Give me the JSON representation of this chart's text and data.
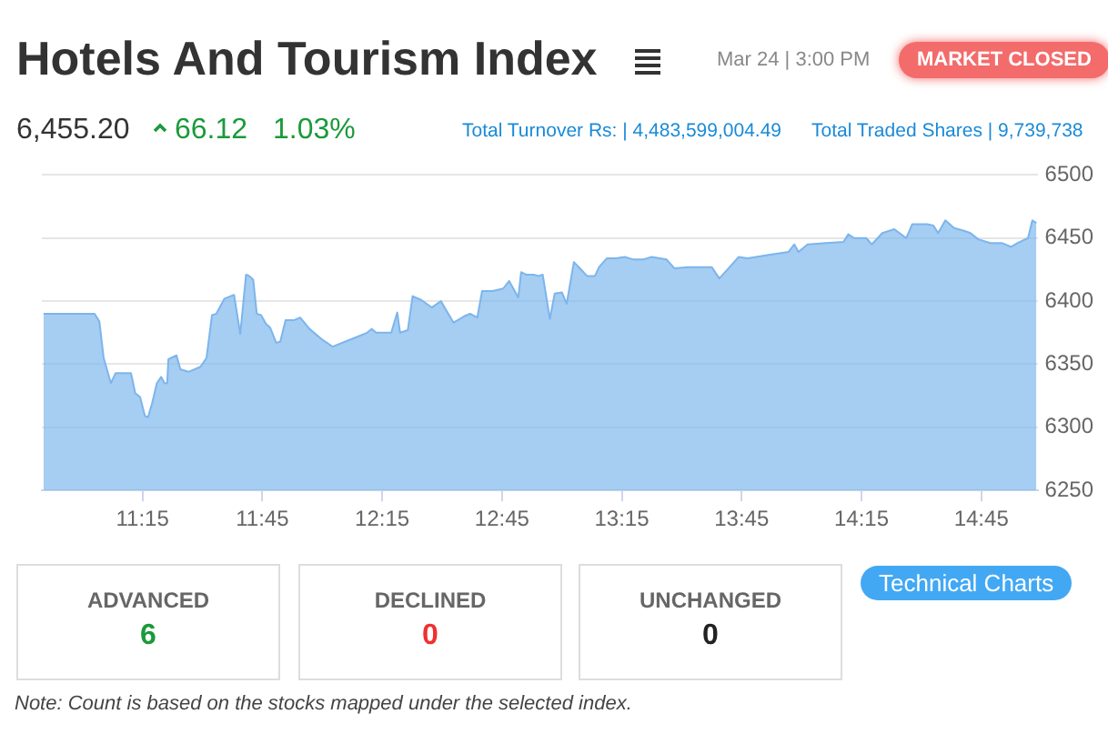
{
  "chart_data": {
    "type": "area",
    "title": "Hotels And Tourism Index",
    "color": "#7cb5ec",
    "x": [
      10.837,
      11.05,
      11.07,
      11.088,
      11.118,
      11.138,
      11.202,
      11.22,
      11.24,
      11.26,
      11.273,
      11.29,
      11.31,
      11.328,
      11.342,
      11.353,
      11.358,
      11.392,
      11.408,
      11.442,
      11.492,
      11.517,
      11.54,
      11.558,
      11.592,
      11.618,
      11.632,
      11.658,
      11.682,
      11.695,
      11.712,
      11.727,
      11.745,
      11.765,
      11.783,
      11.808,
      11.825,
      11.847,
      11.883,
      11.908,
      11.947,
      11.997,
      12.043,
      12.123,
      12.187,
      12.207,
      12.225,
      12.288,
      12.313,
      12.325,
      12.357,
      12.377,
      12.413,
      12.457,
      12.495,
      12.548,
      12.592,
      12.617,
      12.647,
      12.667,
      12.71,
      12.755,
      12.78,
      12.818,
      12.83,
      12.85,
      12.882,
      12.902,
      12.92,
      12.95,
      12.97,
      13.0,
      13.02,
      13.05,
      13.075,
      13.105,
      13.138,
      13.155,
      13.188,
      13.225,
      13.262,
      13.3,
      13.337,
      13.375,
      13.437,
      13.47,
      13.525,
      13.625,
      13.657,
      13.7,
      13.737,
      13.775,
      13.875,
      13.945,
      13.97,
      13.987,
      14.025,
      14.1,
      14.175,
      14.195,
      14.22,
      14.27,
      14.293,
      14.337,
      14.387,
      14.437,
      14.462,
      14.525,
      14.55,
      14.57,
      14.6,
      14.637,
      14.675,
      14.705,
      14.738,
      14.788,
      14.838,
      14.875,
      14.9,
      14.945,
      14.963,
      14.98
    ],
    "values": [
      6390,
      6390,
      6384,
      6355,
      6335,
      6343,
      6343,
      6327,
      6324,
      6309,
      6308,
      6319,
      6335,
      6340,
      6335,
      6335,
      6354,
      6357,
      6346,
      6344,
      6348,
      6355,
      6389,
      6390,
      6402,
      6404,
      6405,
      6374,
      6421,
      6420,
      6417,
      6390,
      6389,
      6382,
      6379,
      6367,
      6368,
      6385,
      6385,
      6387,
      6378,
      6370,
      6364,
      6370,
      6375,
      6378,
      6375,
      6375,
      6391,
      6375,
      6377,
      6404,
      6401,
      6395,
      6400,
      6383,
      6388,
      6390,
      6387,
      6408,
      6408,
      6410,
      6416,
      6403,
      6423,
      6421,
      6421,
      6420,
      6421,
      6386,
      6406,
      6407,
      6398,
      6431,
      6426,
      6420,
      6420,
      6427,
      6434,
      6434,
      6435,
      6433,
      6433,
      6435,
      6433,
      6426,
      6427,
      6427,
      6418,
      6427,
      6435,
      6434,
      6437,
      6439,
      6445,
      6439,
      6445,
      6446,
      6447,
      6453,
      6450,
      6450,
      6445,
      6454,
      6457,
      6450,
      6461,
      6461,
      6460,
      6454,
      6464,
      6458,
      6456,
      6454,
      6449,
      6446,
      6446,
      6443,
      6446,
      6450,
      6464,
      6462
    ],
    "xlim": [
      10.83,
      14.985
    ],
    "xticks": [
      {
        "value": 11.25,
        "label": "11:15"
      },
      {
        "value": 11.75,
        "label": "11:45"
      },
      {
        "value": 12.25,
        "label": "12:15"
      },
      {
        "value": 12.75,
        "label": "12:45"
      },
      {
        "value": 13.25,
        "label": "13:15"
      },
      {
        "value": 13.75,
        "label": "13:45"
      },
      {
        "value": 14.25,
        "label": "14:15"
      },
      {
        "value": 14.75,
        "label": "14:45"
      }
    ],
    "ylim": [
      6250,
      6500
    ],
    "yticks": [
      6250,
      6300,
      6350,
      6400,
      6450,
      6500
    ],
    "grid": "y",
    "annotations": [
      "Mar 24 | 3:00 PM",
      "MARKET CLOSED",
      "6,455.20",
      "66.12",
      "1.03%",
      "Total Turnover Rs: | 4,483,599,004.49",
      "Total Traded Shares | 9,739,738",
      "ADVANCED",
      "6",
      "DECLINED",
      "0",
      "UNCHANGED",
      "0",
      "Technical Charts",
      "Note: Count is based on the stocks mapped under the selected index."
    ]
  }
}
